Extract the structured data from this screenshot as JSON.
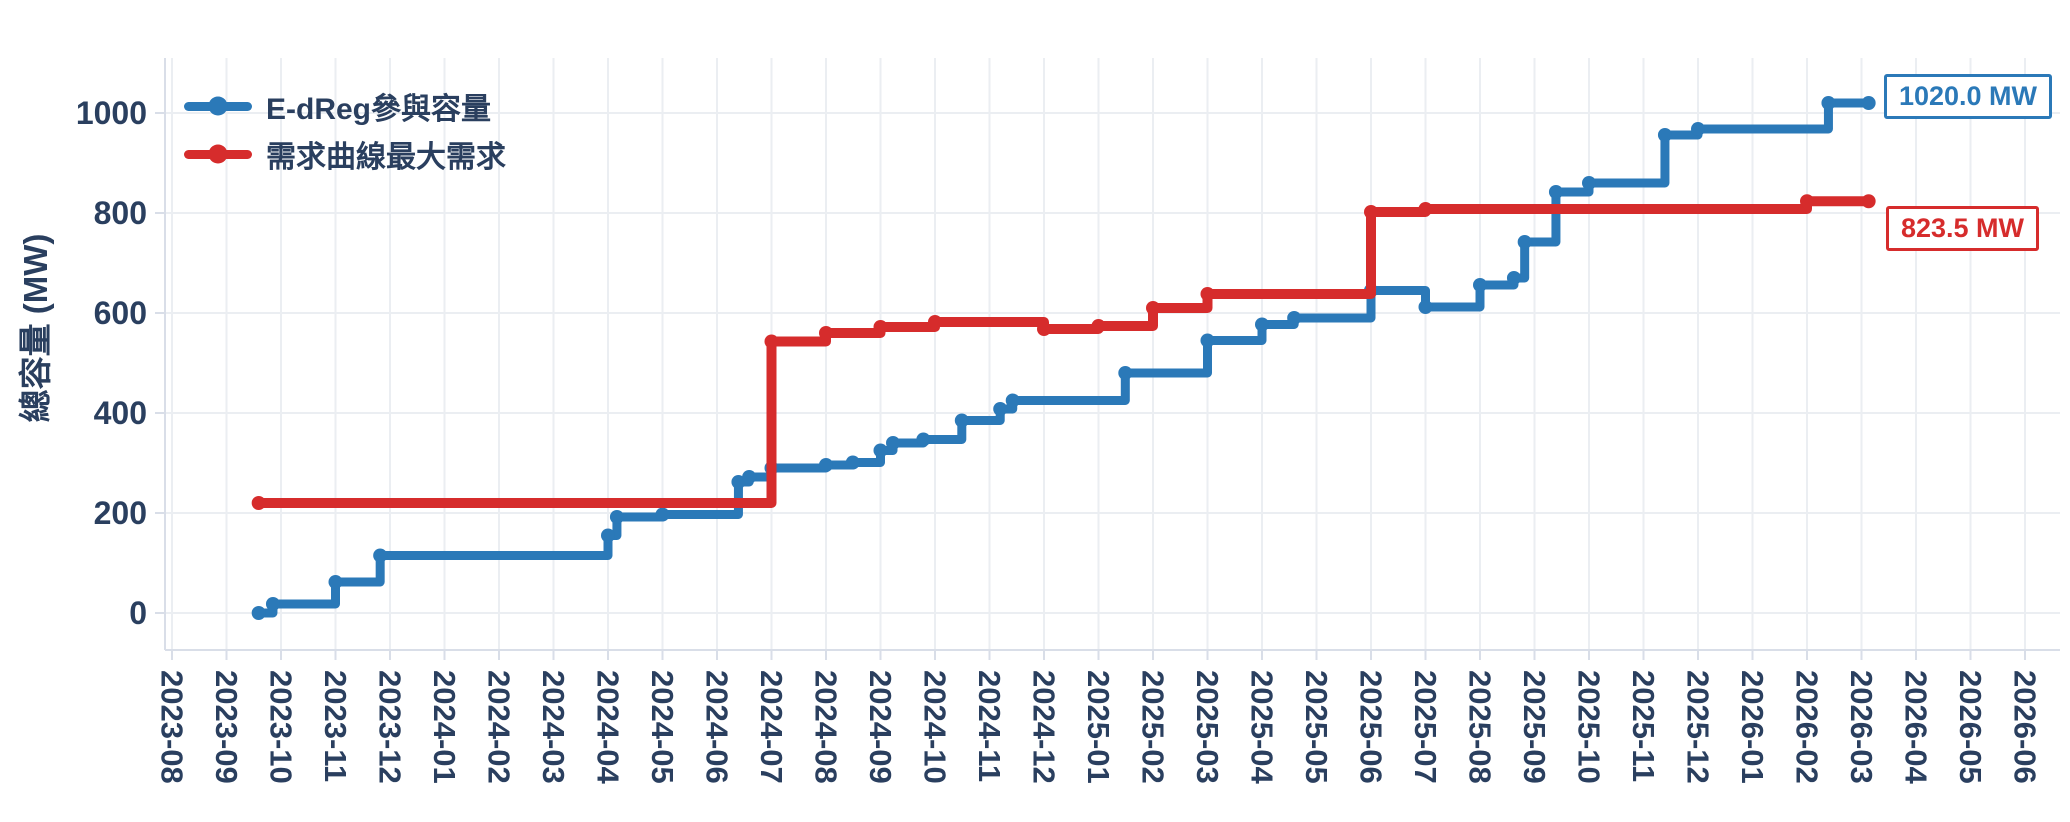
{
  "chart_data": {
    "type": "line",
    "line_shape": "hv-step",
    "title": "",
    "xlabel": "",
    "ylabel": "總容量 (MW)",
    "x_range": [
      "2023-08",
      "2026-06"
    ],
    "ylim": [
      -50,
      1100
    ],
    "grid": true,
    "legend_position": "top-left-inside",
    "colors": {
      "axis_text": "#2a3f5f",
      "gridline": "#ebeef2",
      "axis_line": "#d9dee8",
      "background": "#ffffff"
    },
    "y_ticks": [
      0,
      200,
      400,
      600,
      800,
      1000
    ],
    "x_ticks": [
      "2023-08",
      "2023-09",
      "2023-10",
      "2023-11",
      "2023-12",
      "2024-01",
      "2024-02",
      "2024-03",
      "2024-04",
      "2024-05",
      "2024-06",
      "2024-07",
      "2024-08",
      "2024-09",
      "2024-10",
      "2024-11",
      "2024-12",
      "2025-01",
      "2025-02",
      "2025-03",
      "2025-04",
      "2025-05",
      "2025-06",
      "2025-07",
      "2025-08",
      "2025-09",
      "2025-10",
      "2025-11",
      "2025-12",
      "2026-01",
      "2026-02",
      "2026-03",
      "2026-04",
      "2026-05",
      "2026-06"
    ],
    "series": [
      {
        "name": "E-dReg參與容量",
        "color": "#2b79b8",
        "end_value_mw": 1020.0,
        "points": [
          [
            "2023-09-19",
            0
          ],
          [
            "2023-09-27",
            18
          ],
          [
            "2023-11-01",
            62
          ],
          [
            "2023-11-26",
            115
          ],
          [
            "2024-04-01",
            155
          ],
          [
            "2024-04-06",
            192
          ],
          [
            "2024-05-01",
            197
          ],
          [
            "2024-06-13",
            262
          ],
          [
            "2024-06-19",
            272
          ],
          [
            "2024-07-01",
            290
          ],
          [
            "2024-08-01",
            296
          ],
          [
            "2024-08-16",
            301
          ],
          [
            "2024-09-01",
            325
          ],
          [
            "2024-09-08",
            340
          ],
          [
            "2024-09-25",
            347
          ],
          [
            "2024-10-16",
            385
          ],
          [
            "2024-11-07",
            408
          ],
          [
            "2024-11-14",
            425
          ],
          [
            "2025-01-16",
            480
          ],
          [
            "2025-03-01",
            545
          ],
          [
            "2025-04-01",
            577
          ],
          [
            "2025-04-19",
            590
          ],
          [
            "2025-06-01",
            645
          ],
          [
            "2025-07-01",
            612
          ],
          [
            "2025-08-01",
            656
          ],
          [
            "2025-08-20",
            670
          ],
          [
            "2025-08-26",
            742
          ],
          [
            "2025-09-13",
            842
          ],
          [
            "2025-10-01",
            860
          ],
          [
            "2025-11-13",
            956
          ],
          [
            "2025-12-01",
            968
          ],
          [
            "2026-02-13",
            1020
          ],
          [
            "2026-03-05",
            1020
          ]
        ]
      },
      {
        "name": "需求曲線最大需求",
        "color": "#d62c2c",
        "end_value_mw": 823.5,
        "points": [
          [
            "2023-09-19",
            220
          ],
          [
            "2024-07-01",
            543
          ],
          [
            "2024-08-01",
            560
          ],
          [
            "2024-09-01",
            572
          ],
          [
            "2024-10-01",
            582
          ],
          [
            "2024-12-01",
            568
          ],
          [
            "2025-01-01",
            574
          ],
          [
            "2025-02-01",
            610
          ],
          [
            "2025-03-01",
            638
          ],
          [
            "2025-06-01",
            802
          ],
          [
            "2025-07-01",
            808
          ],
          [
            "2026-02-01",
            823.5
          ],
          [
            "2026-03-05",
            823.5
          ]
        ]
      }
    ],
    "annotations": [
      {
        "text": "1020.0 MW",
        "color": "#2b79b8"
      },
      {
        "text": "823.5 MW",
        "color": "#d62c2c"
      }
    ]
  }
}
